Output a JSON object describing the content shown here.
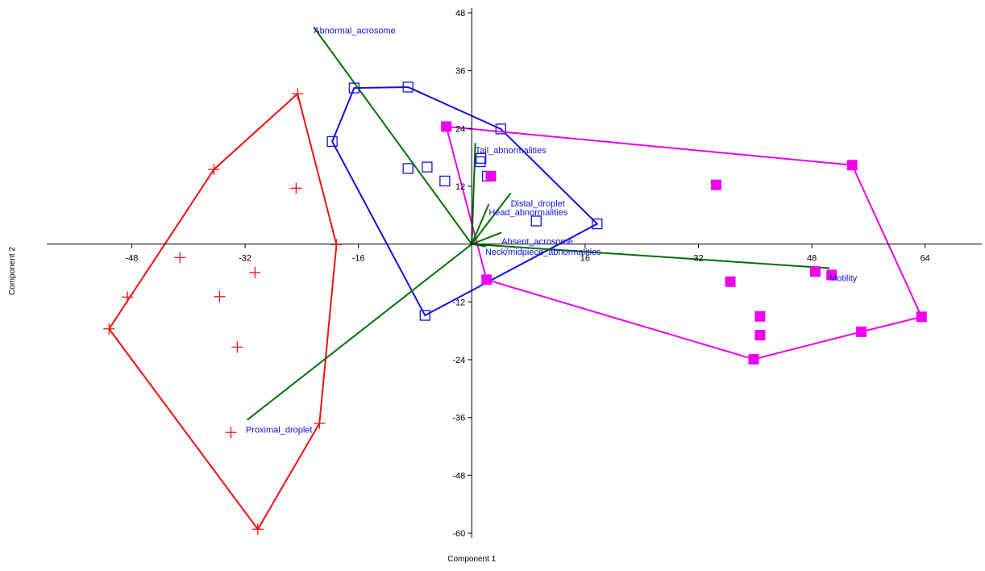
{
  "chart_data": {
    "type": "scatter",
    "title": "",
    "xlabel": "Component 1",
    "ylabel": "Component 2",
    "xlim": [
      -60,
      72
    ],
    "ylim": [
      -61,
      49
    ],
    "xticks": [
      -48,
      -32,
      -16,
      16,
      32,
      48,
      64
    ],
    "yticks": [
      48,
      36,
      24,
      12,
      -12,
      -24,
      -36,
      -48,
      -60
    ],
    "grid": false,
    "colors": {
      "axis": "#000000",
      "vector": "#007000",
      "vector_label": "#1010e0",
      "group_red": "#ee1111",
      "group_blue": "#1111dd",
      "group_magenta": "#ee00ee"
    },
    "series": [
      {
        "marker": "plus",
        "color": "#ee1111",
        "points": [
          [
            -24.6,
            31.2
          ],
          [
            -36.4,
            15.5
          ],
          [
            -24.8,
            11.6
          ],
          [
            -41.2,
            -2.8
          ],
          [
            -30.6,
            -5.9
          ],
          [
            -35.6,
            -10.9
          ],
          [
            -48.6,
            -11
          ],
          [
            -51.2,
            -17.6
          ],
          [
            -33.1,
            -21.4
          ],
          [
            -34,
            -39.1
          ],
          [
            -30.2,
            -59.2
          ],
          [
            -21.5,
            -37.2
          ],
          [
            -19.1,
            -0.1
          ]
        ],
        "hull": [
          [
            -24.6,
            31.2
          ],
          [
            -36.4,
            15.5
          ],
          [
            -51.2,
            -17.6
          ],
          [
            -30.2,
            -59.2
          ],
          [
            -21.5,
            -37.2
          ],
          [
            -19.1,
            -0.1
          ]
        ]
      },
      {
        "marker": "square-open",
        "color": "#1111dd",
        "points": [
          [
            -16.6,
            32.4
          ],
          [
            -9,
            32.6
          ],
          [
            4.1,
            23.9
          ],
          [
            -19.7,
            21.3
          ],
          [
            1.3,
            17.8
          ],
          [
            1.2,
            17.1
          ],
          [
            -9,
            15.7
          ],
          [
            -6.3,
            16
          ],
          [
            -3.8,
            13.1
          ],
          [
            2.2,
            14.1
          ],
          [
            9.1,
            4.8
          ],
          [
            17.7,
            4.2
          ],
          [
            -6.6,
            -14.8
          ]
        ],
        "hull": [
          [
            -16.6,
            32.4
          ],
          [
            -9,
            32.6
          ],
          [
            4.1,
            23.9
          ],
          [
            17.7,
            4.2
          ],
          [
            -6.6,
            -14.8
          ],
          [
            -19.7,
            21.3
          ]
        ]
      },
      {
        "marker": "square-filled",
        "color": "#ee00ee",
        "points": [
          [
            -3.6,
            24.4
          ],
          [
            2.7,
            14.1
          ],
          [
            34.5,
            12.3
          ],
          [
            53.7,
            16.4
          ],
          [
            2.1,
            -7.4
          ],
          [
            36.5,
            -7.8
          ],
          [
            48.5,
            -5.7
          ],
          [
            50.8,
            -6.4
          ],
          [
            40.7,
            -15
          ],
          [
            40.7,
            -18.9
          ],
          [
            39.8,
            -23.9
          ],
          [
            55,
            -18.2
          ],
          [
            63.5,
            -15.1
          ]
        ],
        "hull": [
          [
            -3.6,
            24.4
          ],
          [
            53.7,
            16.4
          ],
          [
            63.5,
            -15.1
          ],
          [
            55,
            -18.2
          ],
          [
            39.8,
            -23.9
          ],
          [
            2.1,
            -7.4
          ]
        ]
      }
    ],
    "loadings": [
      {
        "name": "Abnormal_acrosome",
        "tip": [
          -22.3,
          45
        ],
        "label_pos": [
          -22.3,
          44.4
        ]
      },
      {
        "name": "Tail_abnormalities",
        "tip": [
          0.5,
          21
        ],
        "label_pos": [
          0.5,
          19.5
        ]
      },
      {
        "name": "Distal_droplet",
        "tip": [
          5.5,
          10.6
        ],
        "label_pos": [
          5.5,
          8.5
        ]
      },
      {
        "name": "Head_abnormalities",
        "tip": [
          2.4,
          8.3
        ],
        "label_pos": [
          2.4,
          6.6
        ]
      },
      {
        "name": "Absent_acrosome",
        "tip": [
          4.2,
          2.4
        ],
        "label_pos": [
          4.2,
          0.6
        ]
      },
      {
        "name": "Neck/midpiece_abnormalities",
        "tip": [
          2,
          -0.5
        ],
        "label_pos": [
          1.9,
          -1.6
        ]
      },
      {
        "name": "Motility",
        "tip": [
          50.5,
          -5
        ],
        "label_pos": [
          50.5,
          -7
        ]
      },
      {
        "name": "Proximal_droplet",
        "tip": [
          -31.7,
          -36.5
        ],
        "label_pos": [
          -31.9,
          -38.5
        ]
      }
    ]
  }
}
